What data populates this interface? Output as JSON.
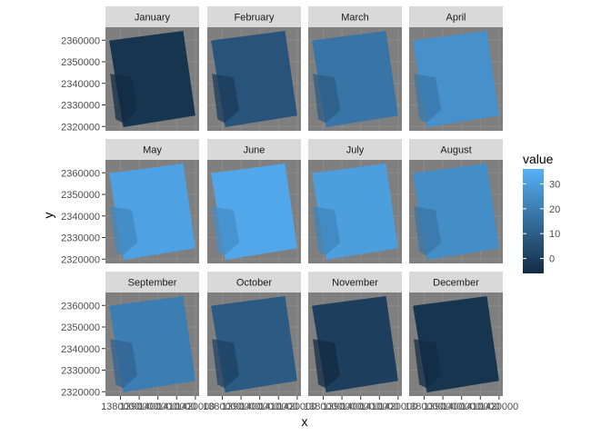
{
  "chart_data": {
    "type": "heatmap",
    "facets": [
      {
        "label": "January",
        "level": -3
      },
      {
        "label": "February",
        "level": 7
      },
      {
        "label": "March",
        "level": 17
      },
      {
        "label": "April",
        "level": 26
      },
      {
        "label": "May",
        "level": 31
      },
      {
        "label": "June",
        "level": 33
      },
      {
        "label": "July",
        "level": 30
      },
      {
        "label": "August",
        "level": 25
      },
      {
        "label": "September",
        "level": 20
      },
      {
        "label": "October",
        "level": 9
      },
      {
        "label": "November",
        "level": 0
      },
      {
        "label": "December",
        "level": -3
      }
    ],
    "xlabel": "x",
    "ylabel": "y",
    "x_ticks": [
      "1380000",
      "1390000",
      "1400000",
      "1410000",
      "1420000"
    ],
    "y_ticks": [
      "2360000",
      "2350000",
      "2340000",
      "2330000",
      "2320000"
    ],
    "xlim": [
      1372000,
      1422000
    ],
    "ylim": [
      2318000,
      2366000
    ],
    "legend": {
      "title": "value",
      "ticks": [
        "30",
        "20",
        "10",
        "0"
      ],
      "tick_values": [
        30,
        20,
        10,
        0
      ],
      "range": [
        -6,
        36
      ],
      "low_color": "#132B43",
      "high_color": "#56B1F7",
      "position": "right"
    },
    "panel_background": "#7f7f7f",
    "strip_background": "#d9d9d9",
    "grid": true
  }
}
